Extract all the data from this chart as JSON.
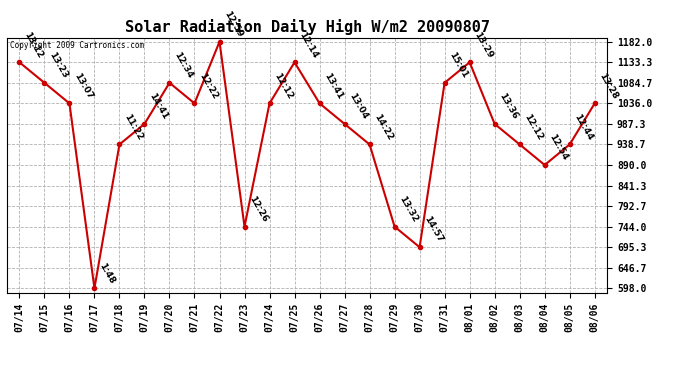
{
  "title": "Solar Radiation Daily High W/m2 20090807",
  "copyright_text": "Copyright 2009 Cartronics.com",
  "x_labels": [
    "07/14",
    "07/15",
    "07/16",
    "07/17",
    "07/18",
    "07/19",
    "07/20",
    "07/21",
    "07/22",
    "07/23",
    "07/24",
    "07/25",
    "07/26",
    "07/27",
    "07/28",
    "07/29",
    "07/30",
    "07/31",
    "08/01",
    "08/02",
    "08/03",
    "08/04",
    "08/05",
    "08/06"
  ],
  "y_values": [
    1133.3,
    1084.7,
    1036.0,
    598.0,
    938.7,
    987.3,
    1084.7,
    1036.0,
    1182.0,
    744.0,
    1036.0,
    1133.3,
    1036.0,
    987.3,
    938.7,
    744.0,
    695.3,
    1084.7,
    1133.3,
    987.3,
    938.7,
    890.0,
    938.7,
    1036.0
  ],
  "time_labels": [
    "13:12",
    "13:23",
    "13:07",
    "1:48",
    "11:22",
    "14:41",
    "12:34",
    "12:22",
    "12:59",
    "12:26",
    "12:12",
    "12:14",
    "13:41",
    "13:04",
    "14:22",
    "13:32",
    "14:57",
    "15:01",
    "13:29",
    "13:36",
    "12:12",
    "12:54",
    "12:44",
    "13:28"
  ],
  "y_min": 598.0,
  "y_max": 1182.0,
  "y_ticks": [
    598.0,
    646.7,
    695.3,
    744.0,
    792.7,
    841.3,
    890.0,
    938.7,
    987.3,
    1036.0,
    1084.7,
    1133.3,
    1182.0
  ],
  "line_color": "#cc0000",
  "marker_color": "#cc0000",
  "background_color": "#ffffff",
  "grid_color": "#aaaaaa",
  "title_fontsize": 11,
  "tick_fontsize": 7,
  "annotation_fontsize": 6.5
}
